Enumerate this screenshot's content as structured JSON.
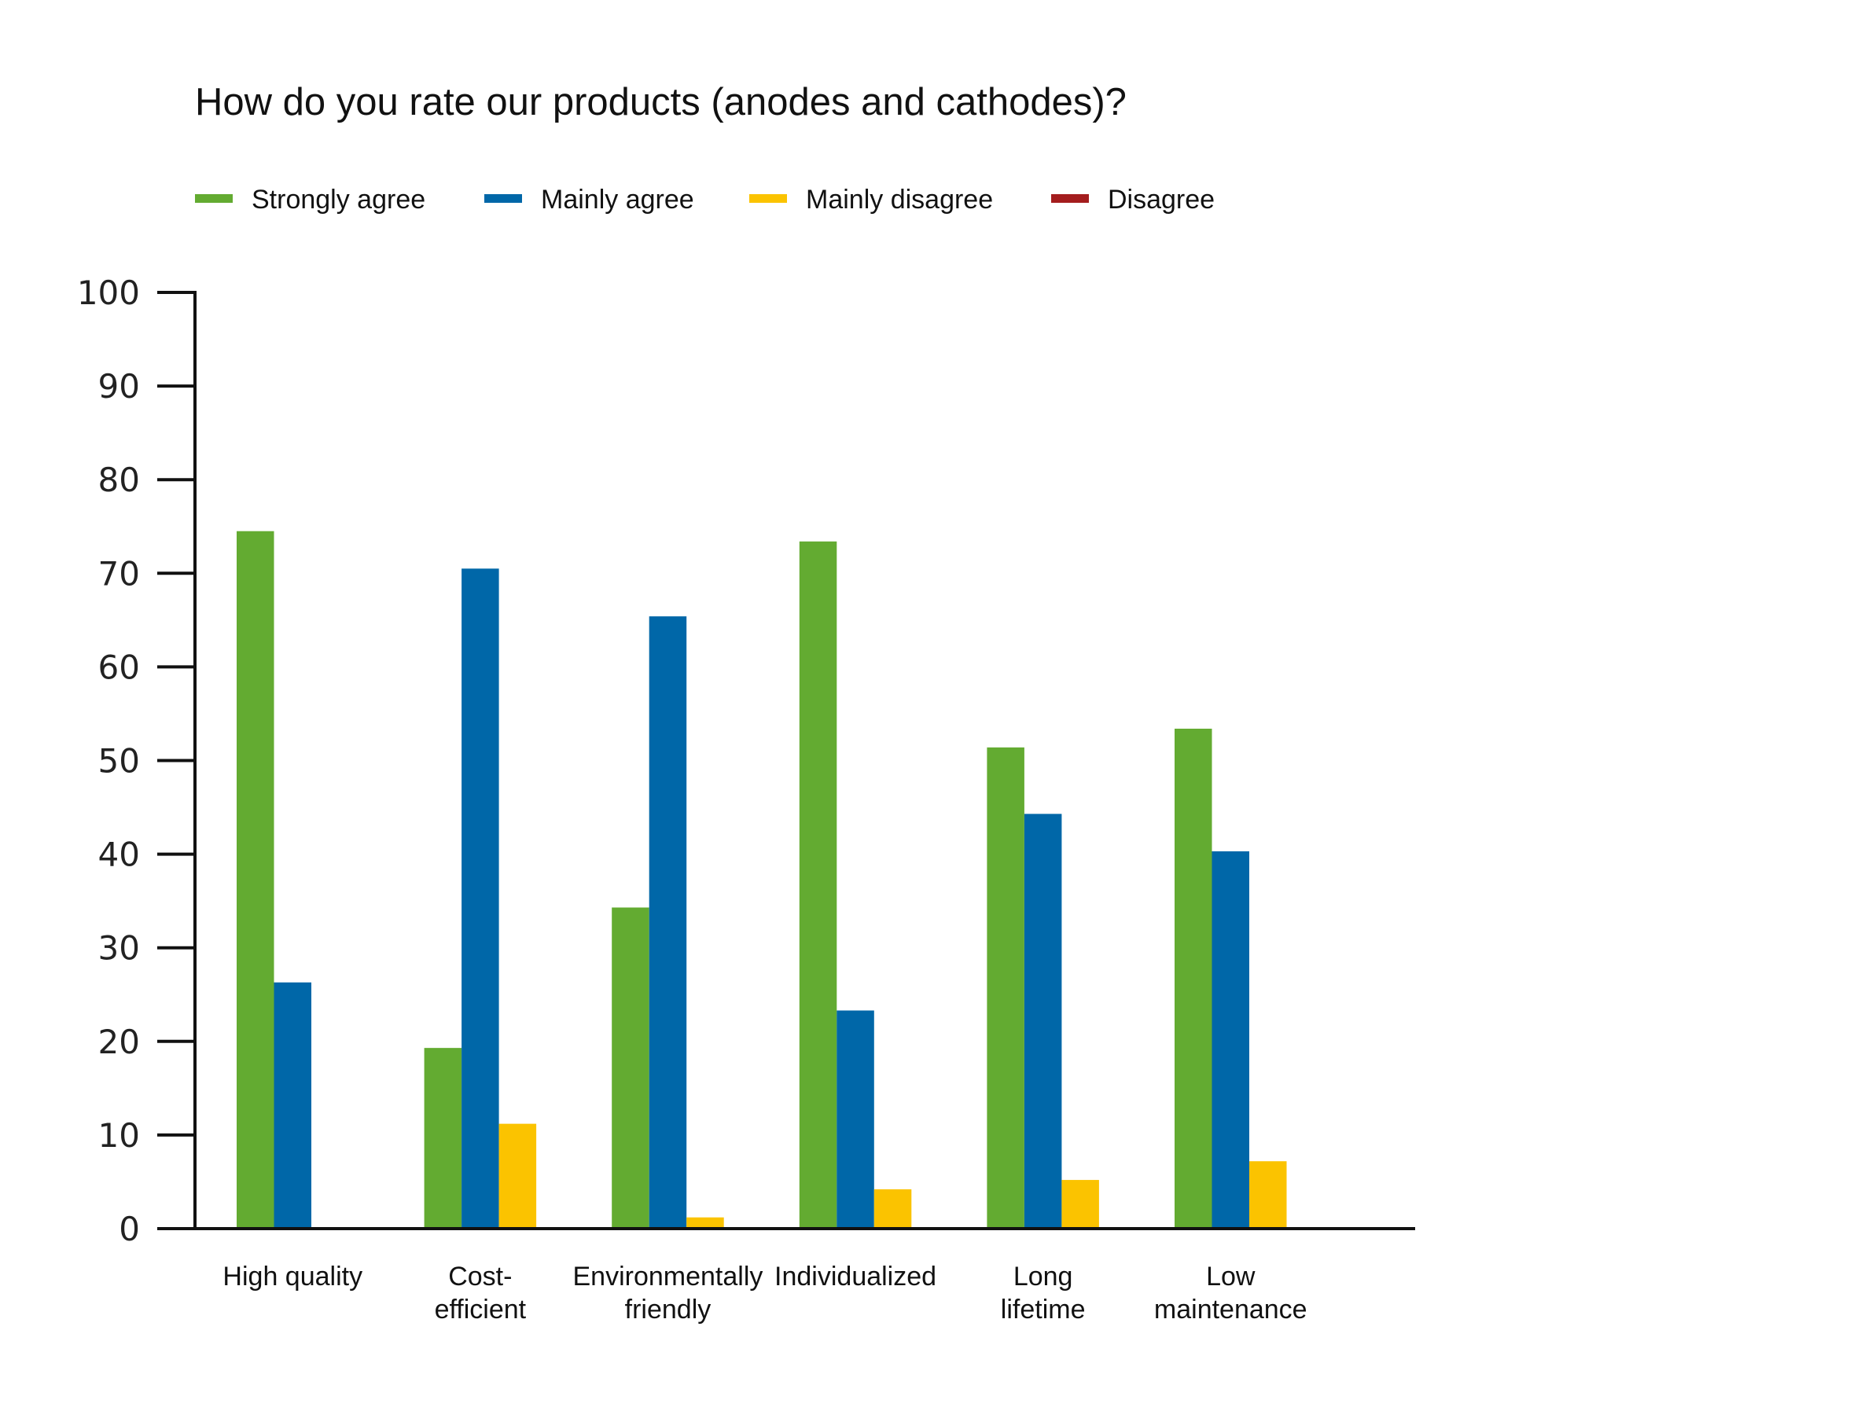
{
  "chart_data": {
    "type": "bar",
    "title": "How do you rate our products (anodes and cathodes)?",
    "xlabel": "",
    "ylabel": "",
    "ylim": [
      0,
      100
    ],
    "yticks": [
      0,
      10,
      20,
      30,
      40,
      50,
      60,
      70,
      80,
      90,
      100
    ],
    "grid": false,
    "legend_position": "top",
    "categories": [
      [
        "High quality"
      ],
      [
        "Cost-",
        "efficient"
      ],
      [
        "Environmentally",
        "friendly"
      ],
      [
        "Individualized"
      ],
      [
        "Long",
        "lifetime"
      ],
      [
        "Low",
        "maintenance"
      ]
    ],
    "series": [
      {
        "name": "Strongly agree",
        "color": "#63ab31",
        "values": [
          74.5,
          19.3,
          34.3,
          73.4,
          51.4,
          53.4
        ]
      },
      {
        "name": "Mainly agree",
        "color": "#0067a8",
        "values": [
          26.3,
          70.5,
          65.4,
          23.3,
          44.3,
          40.3
        ]
      },
      {
        "name": "Mainly disagree",
        "color": "#fbc300",
        "values": [
          0,
          11.2,
          1.2,
          4.2,
          5.2,
          7.2
        ]
      },
      {
        "name": "Disagree",
        "color": "#a41d1e",
        "values": [
          0,
          0,
          0,
          0,
          0,
          0
        ]
      }
    ]
  }
}
